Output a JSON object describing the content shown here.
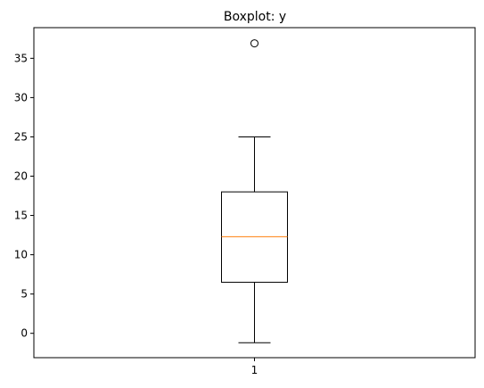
{
  "chart_data": {
    "type": "boxplot",
    "title": "Boxplot: y",
    "xlabel": "",
    "ylabel": "",
    "categories": [
      "1"
    ],
    "boxes": [
      {
        "category": "1",
        "whisker_low": -1.2,
        "q1": 6.5,
        "median": 12.3,
        "q3": 18.0,
        "whisker_high": 25.0,
        "outliers": [
          36.9
        ]
      }
    ],
    "ylim": [
      -3.1,
      38.9
    ],
    "yticks": [
      0,
      5,
      10,
      15,
      20,
      25,
      30,
      35
    ],
    "grid": false,
    "colors": {
      "box": "#000000",
      "median": "#ff7f0e",
      "outlier": "#000000"
    }
  }
}
